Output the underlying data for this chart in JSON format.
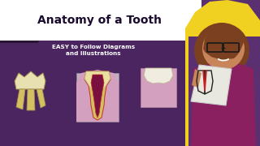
{
  "bg_color": "#5a3070",
  "title_box_color": "#ffffff",
  "title_text": "Anatomy of a Tooth",
  "title_color": "#1a0a2e",
  "subtitle_text": "EASY to Follow Diagrams\nand Illustrations",
  "subtitle_color": "#ffffff",
  "yellow_color": "#f0d020",
  "tooth1_cream": "#d4c060",
  "tooth1_white": "#e8e0b0",
  "tooth2_gum_gray": "#c0afc0",
  "tooth2_pink": "#d4a0c0",
  "tooth2_pulp": "#7a1040",
  "tooth2_canal_outline": "#c03020",
  "tooth2_dentin": "#d4c060",
  "tooth2_enamel": "#e8dfa0",
  "tooth3_pink": "#d4a0c0",
  "tooth3_white": "#f0ede0",
  "skin_color": "#c8855a",
  "hair_color": "#7a4020",
  "shirt_color": "#8a2060",
  "title_fontsize": 10,
  "subtitle_fontsize": 5.2
}
